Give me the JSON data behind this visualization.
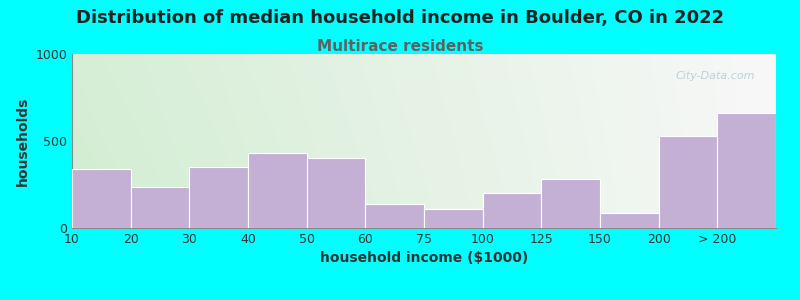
{
  "title": "Distribution of median household income in Boulder, CO in 2022",
  "subtitle": "Multirace residents",
  "xlabel": "household income ($1000)",
  "ylabel": "households",
  "background_color": "#00ffff",
  "bar_color": "#c4b0d5",
  "bar_edgecolor": "#ffffff",
  "categories": [
    "10",
    "20",
    "30",
    "40",
    "50",
    "60",
    "75",
    "100",
    "125",
    "150",
    "200",
    "> 200"
  ],
  "values": [
    340,
    235,
    350,
    430,
    400,
    140,
    110,
    200,
    280,
    85,
    530,
    660
  ],
  "bar_lefts": [
    0,
    1,
    2,
    3,
    4,
    5,
    6,
    7,
    8,
    9,
    10,
    11
  ],
  "bar_widths": [
    1,
    1,
    1,
    1,
    1,
    1,
    1,
    1,
    1,
    1,
    1,
    1
  ],
  "ylim": [
    0,
    1000
  ],
  "yticks": [
    0,
    500,
    1000
  ],
  "title_fontsize": 13,
  "subtitle_fontsize": 11,
  "axis_label_fontsize": 10,
  "tick_fontsize": 9,
  "watermark_text": "City-Data.com",
  "subtitle_color": "#606060",
  "title_color": "#222222"
}
